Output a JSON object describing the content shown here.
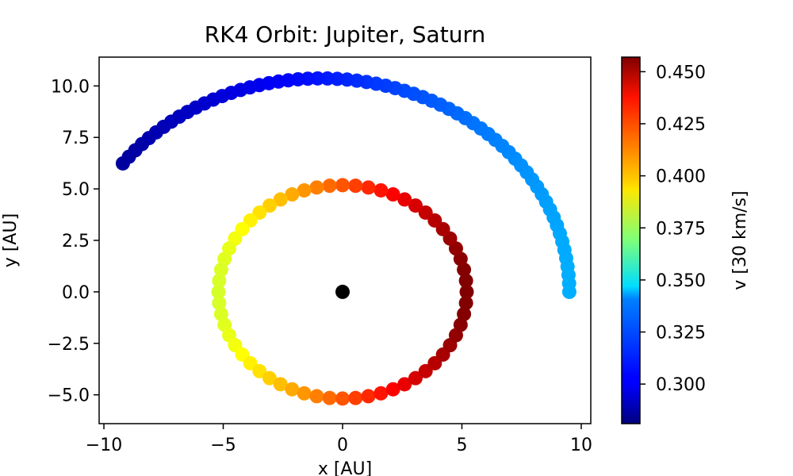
{
  "chart_data": {
    "type": "scatter",
    "title": "RK4 Orbit: Jupiter, Saturn",
    "xlabel": "x [AU]",
    "ylabel": "y [AU]",
    "xlim": [
      -10.2,
      10.4
    ],
    "ylim": [
      -6.4,
      11.4
    ],
    "xticks": [
      -10,
      -5,
      0,
      5,
      10
    ],
    "xtick_labels": [
      "−10",
      "−5",
      "0",
      "5",
      "10"
    ],
    "yticks": [
      -5.0,
      -2.5,
      0.0,
      2.5,
      5.0,
      7.5,
      10.0
    ],
    "ytick_labels": [
      "−5.0",
      "−2.5",
      "0.0",
      "2.5",
      "5.0",
      "7.5",
      "10.0"
    ],
    "grid": false,
    "colorbar": {
      "label": "v [30 km/s]",
      "colormap": "jet",
      "range": [
        0.281,
        0.457
      ],
      "ticks": [
        0.3,
        0.325,
        0.35,
        0.375,
        0.4,
        0.425,
        0.45
      ],
      "tick_labels": [
        "0.300",
        "0.325",
        "0.350",
        "0.375",
        "0.400",
        "0.425",
        "0.450"
      ]
    },
    "central_body": {
      "x": 0,
      "y": 0,
      "color": "#000000"
    },
    "series": [
      {
        "semi_major_axis": 5.2,
        "eccentricity": 0.085,
        "perihelion_x": 5.2,
        "start_angle_deg": 0,
        "end_angle_deg": 354,
        "n_points": 60,
        "v_perihelion": 0.457,
        "v_aphelion": 0.384
      },
      {
        "semi_major_axis": 10.4,
        "eccentricity": 0.08,
        "perihelion_x": 9.5,
        "start_angle_deg": 0,
        "end_angle_deg": 143,
        "n_points": 64,
        "v_perihelion": 0.333,
        "v_aphelion": 0.281
      }
    ]
  }
}
